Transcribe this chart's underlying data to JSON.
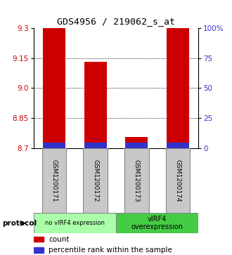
{
  "title": "GDS4956 / 219062_s_at",
  "samples": [
    "GSM1200171",
    "GSM1200172",
    "GSM1200173",
    "GSM1200174"
  ],
  "red_values": [
    9.3,
    9.13,
    8.755,
    9.3
  ],
  "blue_values": [
    8.725,
    8.725,
    8.725,
    8.725
  ],
  "bar_base": 8.7,
  "ylim_left": [
    8.7,
    9.3
  ],
  "ylim_right": [
    0,
    100
  ],
  "left_ticks": [
    8.7,
    8.85,
    9.0,
    9.15,
    9.3
  ],
  "right_ticks": [
    0,
    25,
    50,
    75,
    100
  ],
  "right_tick_labels": [
    "0",
    "25",
    "50",
    "75",
    "100%"
  ],
  "grid_lines": [
    8.85,
    9.0,
    9.15
  ],
  "group1_label": "no vIRF4 expression",
  "group2_label": "vIRF4\noverexpression",
  "protocol_label": "protocol",
  "legend_red": "count",
  "legend_blue": "percentile rank within the sample",
  "bar_width": 0.55,
  "red_color": "#cc0000",
  "blue_color": "#3333cc",
  "group1_color": "#aaffaa",
  "group2_color": "#44cc44",
  "gray_color": "#c8c8c8",
  "gray_edge": "#888888"
}
